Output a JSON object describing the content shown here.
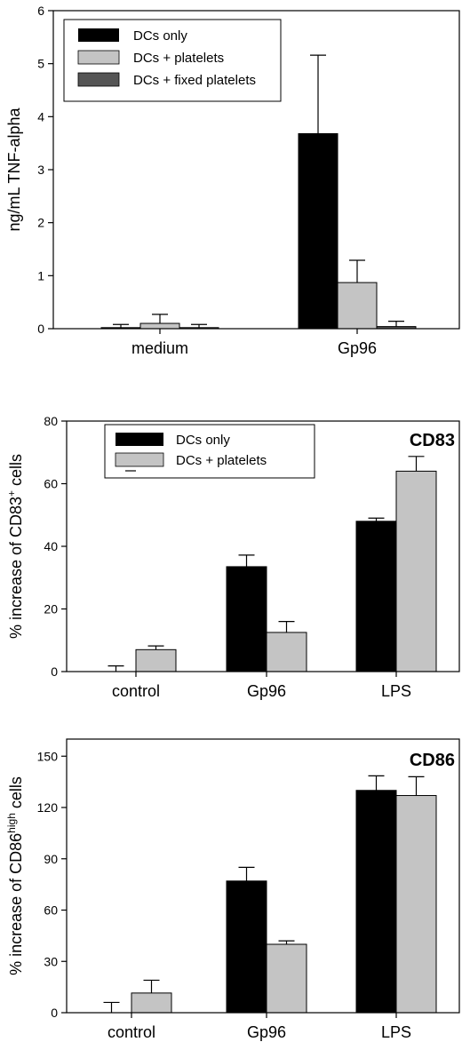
{
  "chart_data": [
    {
      "type": "bar",
      "title": "",
      "ylabel": "ng/mL  TNF-alpha",
      "xlabel": "",
      "ylim": [
        0,
        6
      ],
      "yticks": [
        0,
        1,
        2,
        3,
        4,
        5,
        6
      ],
      "categories": [
        "medium",
        "Gp96"
      ],
      "legend_position": "top-left",
      "series": [
        {
          "name": "DCs only",
          "color": "#000000",
          "values": [
            0.02,
            3.68
          ],
          "errors": [
            0.06,
            1.48
          ]
        },
        {
          "name": "DCs + platelets",
          "color": "#c4c4c4",
          "values": [
            0.1,
            0.87
          ],
          "errors": [
            0.17,
            0.42
          ]
        },
        {
          "name": "DCs + fixed platelets",
          "color": "#555555",
          "values": [
            0.02,
            0.04
          ],
          "errors": [
            0.06,
            0.1
          ]
        }
      ]
    },
    {
      "type": "bar",
      "title": "CD83",
      "ylabel_prefix": "% increase of CD83",
      "ylabel_sup": "+",
      "ylabel_suffix": " cells",
      "xlabel": "",
      "ylim": [
        0,
        80
      ],
      "yticks": [
        0,
        20,
        40,
        60,
        80
      ],
      "categories": [
        "control",
        "Gp96",
        "LPS"
      ],
      "legend_position": "top-left",
      "series": [
        {
          "name": "DCs only",
          "color": "#000000",
          "values": [
            0,
            33.5,
            48
          ],
          "errors": [
            1.8,
            3.7,
            1.0
          ]
        },
        {
          "name": "DCs + platelets",
          "color": "#c4c4c4",
          "values": [
            7,
            12.5,
            64
          ],
          "errors": [
            1.2,
            3.5,
            4.7
          ]
        }
      ]
    },
    {
      "type": "bar",
      "title": "CD86",
      "ylabel_prefix": "% increase of CD86",
      "ylabel_sup": "high",
      "ylabel_suffix": " cells",
      "xlabel": "",
      "ylim": [
        0,
        160
      ],
      "yticks": [
        0,
        30,
        60,
        90,
        120,
        150
      ],
      "categories": [
        "control",
        "Gp96",
        "LPS"
      ],
      "series": [
        {
          "color": "#000000",
          "values": [
            0,
            77,
            130
          ],
          "errors": [
            6,
            8,
            8.5
          ]
        },
        {
          "color": "#c4c4c4",
          "values": [
            11.5,
            40,
            127
          ],
          "errors": [
            7.5,
            2,
            11
          ]
        }
      ]
    }
  ]
}
